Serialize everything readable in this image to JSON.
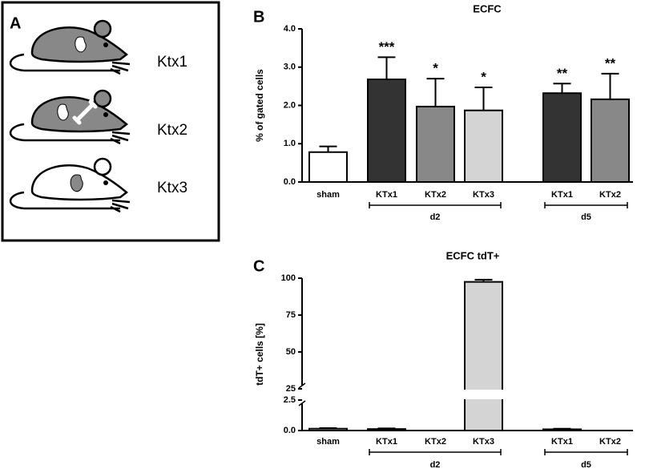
{
  "panel_a": {
    "label": "A",
    "items": [
      "Ktx1",
      "Ktx2",
      "Ktx3"
    ]
  },
  "chart_data": [
    {
      "type": "bar",
      "panel_label": "B",
      "title": "ECFC",
      "y_label": "% of gated cells",
      "categories": [
        "sham",
        "KTx1",
        "KTx2",
        "KTx3",
        "KTx1",
        "KTx2"
      ],
      "category_groups": [
        null,
        "d2",
        "d2",
        "d2",
        "d5",
        "d5"
      ],
      "values": [
        0.78,
        2.68,
        1.97,
        1.87,
        2.32,
        2.16
      ],
      "errors": [
        0.15,
        0.58,
        0.73,
        0.6,
        0.25,
        0.67
      ],
      "significance": [
        null,
        "***",
        "*",
        "*",
        "**",
        "**"
      ],
      "colors": [
        "#ffffff",
        "#333333",
        "#888888",
        "#d4d4d4",
        "#333333",
        "#888888"
      ],
      "ylim": [
        0,
        4
      ],
      "yticks": [
        {
          "value": 0,
          "label": "0.0"
        },
        {
          "value": 1,
          "label": "1.0"
        },
        {
          "value": 2,
          "label": "2.0"
        },
        {
          "value": 3,
          "label": "3.0"
        },
        {
          "value": 4,
          "label": "4.0"
        }
      ]
    },
    {
      "type": "bar",
      "panel_label": "C",
      "title": "ECFC tdT+",
      "y_label": "tdT+ cells [%]",
      "categories": [
        "sham",
        "KTx1",
        "KTx2",
        "KTx3",
        "KTx1",
        "KTx2"
      ],
      "category_groups": [
        null,
        "d2",
        "d2",
        "d2",
        "d5",
        "d5"
      ],
      "values": [
        0.15,
        0.12,
        0,
        97.5,
        0.1,
        0
      ],
      "errors": [
        0.05,
        0.05,
        0,
        1.5,
        0.05,
        0
      ],
      "colors": [
        "#ffffff",
        "#333333",
        "#888888",
        "#d4d4d4",
        "#333333",
        "#888888"
      ],
      "ylim": [
        0,
        100
      ],
      "ybreak": [
        2.5,
        25
      ],
      "yticks": [
        {
          "value": 0,
          "label": "0.0"
        },
        2.5,
        25,
        50,
        75,
        100
      ]
    }
  ]
}
